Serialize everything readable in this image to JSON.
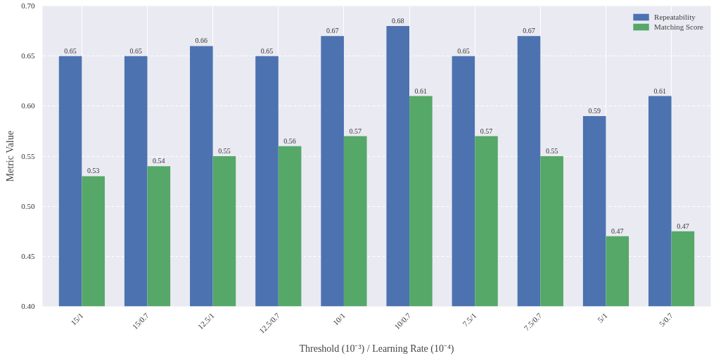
{
  "chart_data": {
    "type": "bar",
    "xlabel": "Threshold (10⁻³) / Learning Rate (10⁻⁴)",
    "ylabel": "Metric Value",
    "categories": [
      "15/1",
      "15/0.7",
      "12.5/1",
      "12.5/0.7",
      "10/1",
      "10/0.7",
      "7.5/1",
      "7.5/0.7",
      "5/1",
      "5/0.7"
    ],
    "series": [
      {
        "name": "Repeatability",
        "color": "#4c72b0",
        "values": [
          0.65,
          0.65,
          0.66,
          0.65,
          0.67,
          0.68,
          0.65,
          0.67,
          0.59,
          0.61
        ],
        "value_labels": [
          "0.65",
          "0.65",
          "0.66",
          "0.65",
          "0.67",
          "0.68",
          "0.65",
          "0.67",
          "0.59",
          "0.61"
        ]
      },
      {
        "name": "Matching Score",
        "color": "#55a868",
        "values": [
          0.53,
          0.54,
          0.55,
          0.56,
          0.57,
          0.61,
          0.57,
          0.55,
          0.47,
          0.475
        ],
        "value_labels": [
          "0.53",
          "0.54",
          "0.55",
          "0.56",
          "0.57",
          "0.61",
          "0.57",
          "0.55",
          "0.47",
          "0.47"
        ]
      }
    ],
    "ylim": [
      0.4,
      0.7
    ],
    "yticks": [
      {
        "value": 0.4,
        "label": "0.40"
      },
      {
        "value": 0.45,
        "label": "0.45"
      },
      {
        "value": 0.5,
        "label": "0.50"
      },
      {
        "value": 0.55,
        "label": "0.55"
      },
      {
        "value": 0.6,
        "label": "0.60"
      },
      {
        "value": 0.65,
        "label": "0.65"
      },
      {
        "value": 0.7,
        "label": "0.70"
      }
    ],
    "grid": true,
    "legend": "top right"
  }
}
